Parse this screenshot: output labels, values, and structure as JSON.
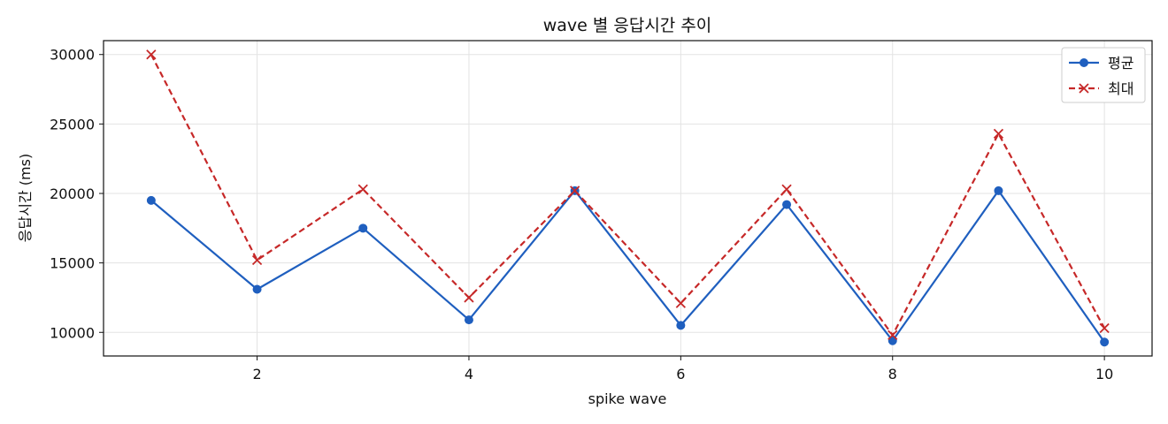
{
  "chart_data": {
    "type": "line",
    "title": "wave 별 응답시간 추이",
    "xlabel": "spike wave",
    "ylabel": "응답시간 (ms)",
    "x": [
      1,
      2,
      3,
      4,
      5,
      6,
      7,
      8,
      9,
      10
    ],
    "xlim": [
      0.55,
      10.45
    ],
    "ylim": [
      8300,
      31000
    ],
    "xticks": [
      2,
      4,
      6,
      8,
      10
    ],
    "yticks": [
      10000,
      15000,
      20000,
      25000,
      30000
    ],
    "grid": true,
    "legend_position": "top-right",
    "series": [
      {
        "name": "평균",
        "values": [
          19500,
          13100,
          17500,
          10900,
          20200,
          10500,
          19200,
          9400,
          20200,
          9300
        ],
        "color": "#1f5fbf",
        "line_style": "solid",
        "marker": "circle"
      },
      {
        "name": "최대",
        "values": [
          30000,
          15200,
          20300,
          12500,
          20200,
          12100,
          20300,
          9800,
          24300,
          10300
        ],
        "color": "#c62828",
        "line_style": "dashed",
        "marker": "x"
      }
    ]
  }
}
